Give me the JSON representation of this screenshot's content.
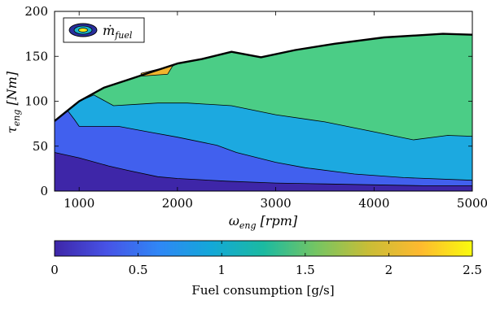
{
  "chart_data": {
    "type": "contour",
    "legend": {
      "label_base": "ṁ",
      "label_sub": "fuel"
    },
    "xaxis": {
      "label_base": "ω",
      "label_sub": "eng",
      "label_unit": "[rpm]",
      "lim": [
        750,
        5000
      ],
      "ticks": [
        1000,
        2000,
        3000,
        4000,
        5000
      ]
    },
    "yaxis": {
      "label_base": "τ",
      "label_sub": "eng",
      "label_unit": "[Nm]",
      "lim": [
        0,
        200
      ],
      "ticks": [
        0,
        50,
        100,
        150,
        200
      ]
    },
    "colorbar": {
      "label": "Fuel consumption [g/s]",
      "lim": [
        0,
        2.5
      ],
      "ticks": [
        0,
        0.5,
        1,
        1.5,
        2,
        2.5
      ],
      "colormap": [
        "#3e26a8",
        "#4753e6",
        "#2f87f6",
        "#13a8d8",
        "#1bbaa1",
        "#74c563",
        "#c8bd37",
        "#feb92f",
        "#f9fb0e"
      ]
    },
    "max_torque_curve": [
      [
        750,
        78
      ],
      [
        1000,
        100
      ],
      [
        1250,
        115
      ],
      [
        1500,
        124
      ],
      [
        1750,
        133
      ],
      [
        2000,
        142
      ],
      [
        2250,
        147
      ],
      [
        2550,
        155
      ],
      [
        2850,
        149
      ],
      [
        3200,
        157
      ],
      [
        3600,
        164
      ],
      [
        4100,
        171
      ],
      [
        4700,
        175
      ],
      [
        5000,
        174
      ]
    ],
    "bands": [
      {
        "name": "level-1",
        "color": "#3e26a8",
        "upper": [
          [
            750,
            43
          ],
          [
            1000,
            37
          ],
          [
            1300,
            28
          ],
          [
            1500,
            23
          ],
          [
            1800,
            16
          ],
          [
            2000,
            14
          ],
          [
            2500,
            11
          ],
          [
            3000,
            9
          ],
          [
            3500,
            8
          ],
          [
            4000,
            7
          ],
          [
            4500,
            6
          ],
          [
            5000,
            6
          ]
        ]
      },
      {
        "name": "level-2",
        "color": "#4160ee",
        "upper": [
          [
            750,
            78
          ],
          [
            880,
            90
          ],
          [
            950,
            80
          ],
          [
            1000,
            72
          ],
          [
            1400,
            72
          ],
          [
            1700,
            66
          ],
          [
            2000,
            60
          ],
          [
            2400,
            51
          ],
          [
            2600,
            43
          ],
          [
            3000,
            32
          ],
          [
            3300,
            26
          ],
          [
            3800,
            19
          ],
          [
            4300,
            15
          ],
          [
            5000,
            12
          ]
        ]
      },
      {
        "name": "level-3",
        "color": "#1ca9e0",
        "upper": [
          [
            750,
            78
          ],
          [
            1000,
            100
          ],
          [
            1150,
            107
          ],
          [
            1350,
            95
          ],
          [
            1650,
            97
          ],
          [
            1800,
            98
          ],
          [
            2100,
            98
          ],
          [
            2550,
            95
          ],
          [
            3000,
            85
          ],
          [
            3500,
            77
          ],
          [
            4000,
            66
          ],
          [
            4400,
            57
          ],
          [
            4750,
            62
          ],
          [
            5000,
            61
          ]
        ]
      },
      {
        "name": "level-4",
        "color": "#4bcd86",
        "upper": [
          [
            750,
            78
          ],
          [
            1000,
            100
          ],
          [
            1250,
            115
          ],
          [
            1500,
            124
          ],
          [
            1750,
            133
          ],
          [
            2000,
            142
          ],
          [
            2250,
            147
          ],
          [
            2550,
            155
          ],
          [
            2850,
            149
          ],
          [
            3200,
            157
          ],
          [
            3600,
            164
          ],
          [
            4100,
            171
          ],
          [
            4700,
            175
          ],
          [
            5000,
            174
          ]
        ]
      },
      {
        "name": "level-5",
        "color": "#f0b52e",
        "polygon": [
          [
            1630,
            128
          ],
          [
            1900,
            130
          ],
          [
            1950,
            139
          ],
          [
            2000,
            142
          ],
          [
            1850,
            137
          ],
          [
            1630,
            131
          ]
        ]
      }
    ]
  }
}
